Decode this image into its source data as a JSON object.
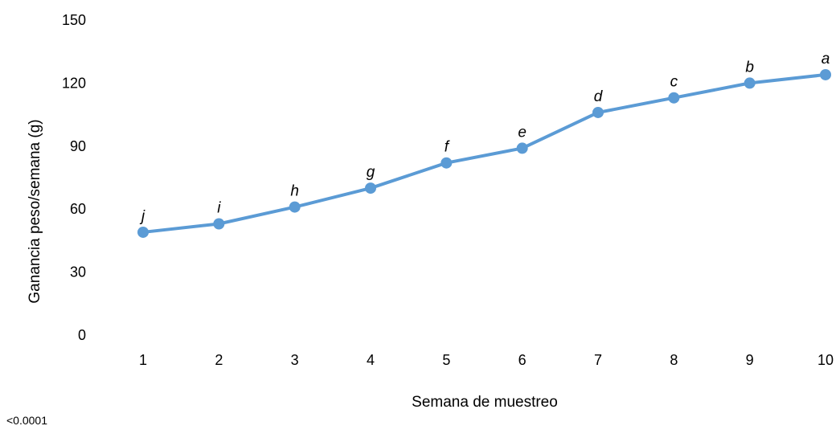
{
  "chart_data": {
    "type": "line",
    "title": "",
    "xlabel": "Semana de muestreo",
    "ylabel": "Ganancia peso/semana (g)",
    "categories": [
      "1",
      "2",
      "3",
      "4",
      "5",
      "6",
      "7",
      "8",
      "9",
      "10"
    ],
    "series": [
      {
        "values": [
          49,
          53,
          61,
          70,
          82,
          89,
          106,
          113,
          120,
          124
        ],
        "labels": [
          "j",
          "i",
          "h",
          "g",
          "f",
          "e",
          "d",
          "c",
          "b",
          "a"
        ],
        "color": "#5b9bd5"
      }
    ],
    "ylim": [
      0,
      150
    ],
    "yticks": [
      0,
      30,
      60,
      90,
      120,
      150
    ],
    "grid": false,
    "legend": "none"
  },
  "footnote": "<0.0001"
}
